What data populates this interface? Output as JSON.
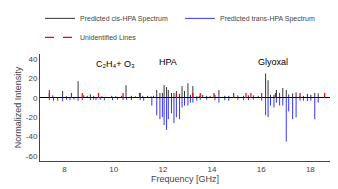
{
  "chart_data": {
    "type": "stem",
    "xlabel": "Frequency [GHz]",
    "ylabel": "Normalized Intensity",
    "xlim": [
      7.0,
      18.8
    ],
    "ylim": [
      -65,
      45
    ],
    "xticks": [
      8,
      10,
      12,
      14,
      16,
      18
    ],
    "yticks": [
      -60,
      -40,
      -20,
      0,
      20,
      40
    ],
    "grid": false,
    "legend": "top",
    "series": [
      {
        "name": "Predicted cis-HPA Spectrum",
        "color": "black",
        "line_style": "solid",
        "x": [
          7.38,
          7.52,
          7.92,
          8.08,
          8.55,
          8.78,
          8.92,
          9.05,
          9.18,
          9.52,
          9.65,
          9.92,
          10.08,
          10.32,
          10.5,
          10.72,
          10.88,
          11.08,
          11.18,
          11.38,
          11.52,
          11.62,
          11.75,
          11.88,
          11.98,
          12.05,
          12.15,
          12.22,
          12.35,
          12.45,
          12.55,
          12.68,
          12.78,
          12.88,
          13.02,
          13.12,
          13.22,
          13.38,
          13.48,
          13.62,
          13.78,
          13.92,
          14.12,
          14.28,
          14.52,
          14.68,
          14.88,
          15.05,
          15.28,
          15.48,
          15.68,
          15.88,
          16.02,
          16.18,
          16.28,
          16.38,
          16.52,
          16.62,
          16.75,
          16.88,
          17.02,
          17.12,
          17.28,
          17.42,
          17.58,
          17.72,
          17.88,
          18.02,
          18.18,
          18.32
        ],
        "values": [
          8,
          2.5,
          7,
          1.5,
          17,
          2.5,
          2,
          3.5,
          2,
          1.5,
          1,
          2,
          1.5,
          2,
          13,
          2,
          1.5,
          5,
          2,
          2,
          1.5,
          2,
          8,
          5,
          5,
          13,
          11,
          8,
          5,
          5,
          7,
          4,
          12,
          7,
          15,
          3,
          12,
          1.5,
          2,
          3,
          2,
          2,
          3,
          8,
          2,
          2,
          2,
          2.5,
          2,
          2.5,
          2.5,
          2,
          1.5,
          25,
          18,
          3,
          3,
          8,
          5,
          10,
          8,
          3.5,
          4.5,
          5.5,
          2,
          2,
          4,
          3,
          5,
          4.5
        ]
      },
      {
        "name": "Predicted trans-HPA Spectrum",
        "color": "blue",
        "line_style": "solid",
        "x": [
          7.38,
          7.55,
          7.72,
          7.92,
          8.08,
          8.22,
          8.38,
          8.55,
          8.72,
          9.05,
          9.18,
          9.28,
          9.45,
          9.62,
          9.95,
          10.15,
          10.38,
          10.52,
          10.72,
          11.08,
          11.22,
          11.55,
          11.75,
          11.88,
          11.98,
          12.05,
          12.15,
          12.22,
          12.35,
          12.45,
          12.55,
          12.68,
          12.78,
          12.88,
          13.02,
          13.12,
          13.22,
          13.38,
          13.52,
          13.78,
          14.12,
          14.28,
          14.52,
          14.68,
          15.05,
          15.28,
          15.48,
          15.68,
          16.02,
          16.18,
          16.28,
          16.38,
          16.52,
          16.62,
          16.75,
          16.88,
          17.02,
          17.12,
          17.28,
          17.42,
          17.58,
          17.72,
          17.88,
          18.02,
          18.18,
          18.32
        ],
        "values": [
          -2.5,
          -3,
          -3,
          -3.5,
          -2,
          -2.5,
          -2,
          -3,
          -2.5,
          -2.5,
          -2,
          -2.5,
          -2,
          -2.5,
          -2.5,
          -2,
          -2.5,
          -2,
          -2.5,
          -2.5,
          -3,
          -8,
          -18,
          -22,
          -20,
          -28,
          -33,
          -22,
          -16,
          -26,
          -20,
          -22,
          -10,
          -8,
          -8,
          -5,
          -5,
          -3,
          -2,
          -2,
          -2.5,
          -5,
          -2.5,
          -3,
          -2,
          -2.5,
          -2.5,
          -2,
          -3,
          -18,
          -20,
          -8,
          -10,
          -5,
          -8,
          -8,
          -45,
          -14,
          -22,
          -20,
          -3,
          -3,
          -3.5,
          -3,
          -22,
          -5
        ]
      },
      {
        "name": "Unidentified Lines",
        "color": "red",
        "line_style": "dashed",
        "x": [
          7.38,
          8.28,
          8.72,
          9.38,
          10.38,
          11.05,
          12.55,
          13.22,
          13.52,
          14.08,
          14.88,
          15.38,
          15.58,
          16.02,
          16.58,
          17.58,
          18.58
        ],
        "values": [
          5,
          5,
          5,
          5,
          5,
          5,
          5,
          5,
          5,
          5,
          5,
          5,
          5,
          5,
          5,
          5,
          5
        ]
      }
    ],
    "annotations": [
      {
        "text": "C₂H₄+ O₃",
        "x": 9.2,
        "y": 42
      },
      {
        "text": "HPA",
        "x": 12.2,
        "y": 30
      },
      {
        "text": "Glyoxal",
        "x": 16.5,
        "y": 30
      }
    ]
  }
}
